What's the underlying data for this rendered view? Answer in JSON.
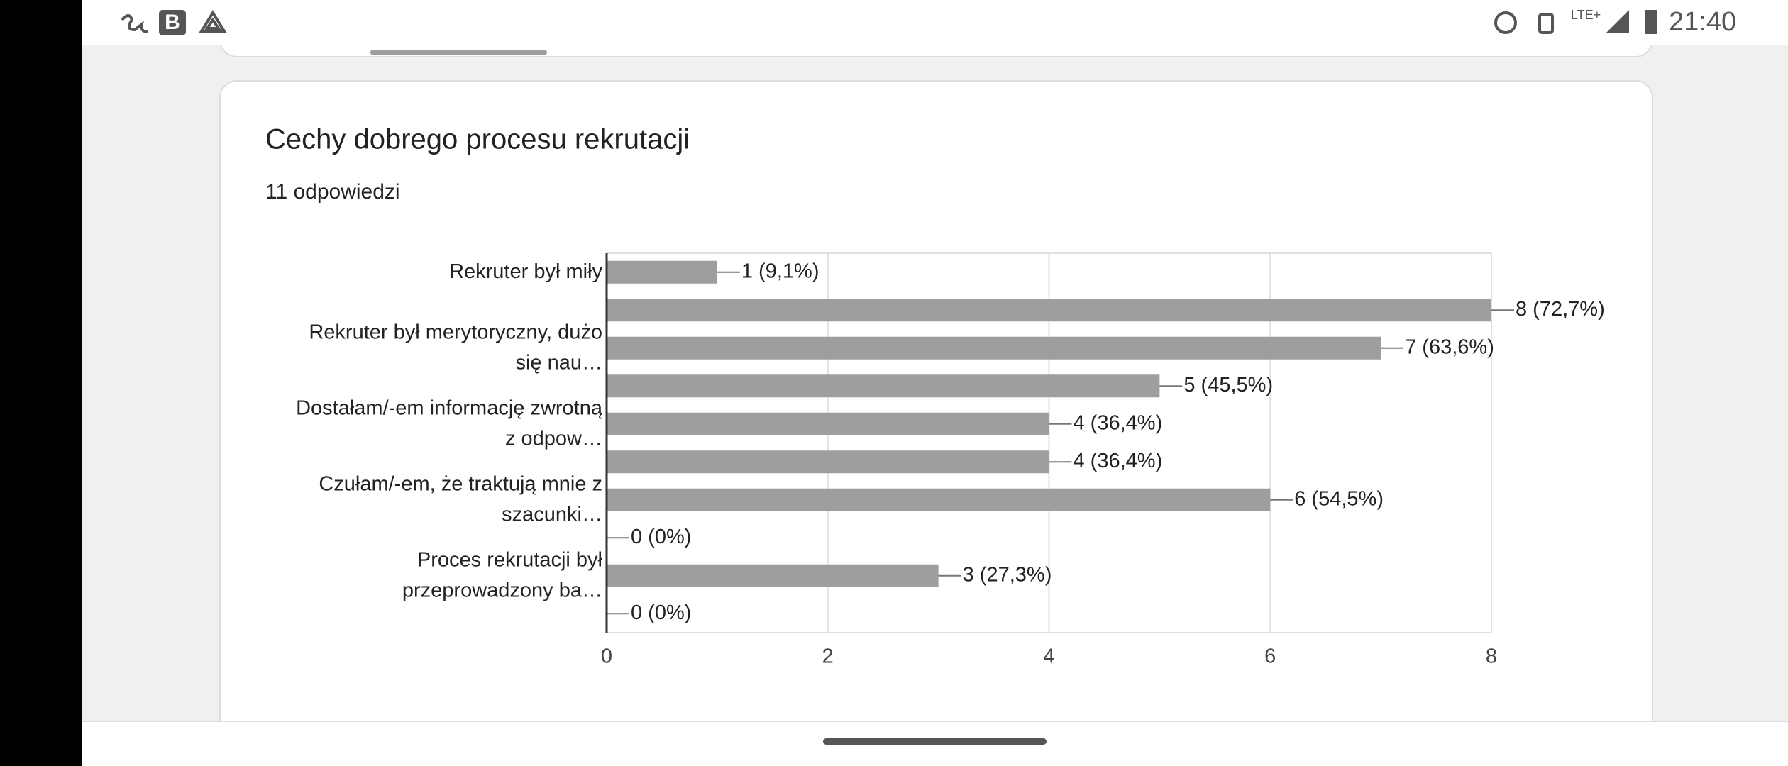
{
  "status_bar": {
    "b_icon": "B",
    "network": "LTE+",
    "time": "21:40"
  },
  "card": {
    "title": "Cechy dobrego procesu rekrutacji",
    "subtitle": "11 odpowiedzi"
  },
  "chart_data": {
    "type": "bar",
    "orientation": "horizontal",
    "categories": [
      "Rekruter był miły",
      null,
      "Rekruter był merytoryczny, dużo się nau…",
      null,
      "Dostałam/-em informację zwrotną z odpow…",
      null,
      "Czułam/-em, że traktują mnie z szacunki…",
      null,
      "Proces rekrutacji był przeprowadzony ba…",
      null
    ],
    "values": [
      1,
      8,
      7,
      5,
      4,
      4,
      6,
      0,
      3,
      0
    ],
    "value_labels": [
      "1 (9,1%)",
      "8 (72,7%)",
      "7 (63,6%)",
      "5 (45,5%)",
      "4 (36,4%)",
      "4 (36,4%)",
      "6 (54,5%)",
      "0 (0%)",
      "3 (27,3%)",
      "0 (0%)"
    ],
    "color": "#9e9e9e",
    "xlim": [
      0,
      8
    ],
    "xticks": [
      0,
      2,
      4,
      6,
      8
    ],
    "grid": true
  }
}
